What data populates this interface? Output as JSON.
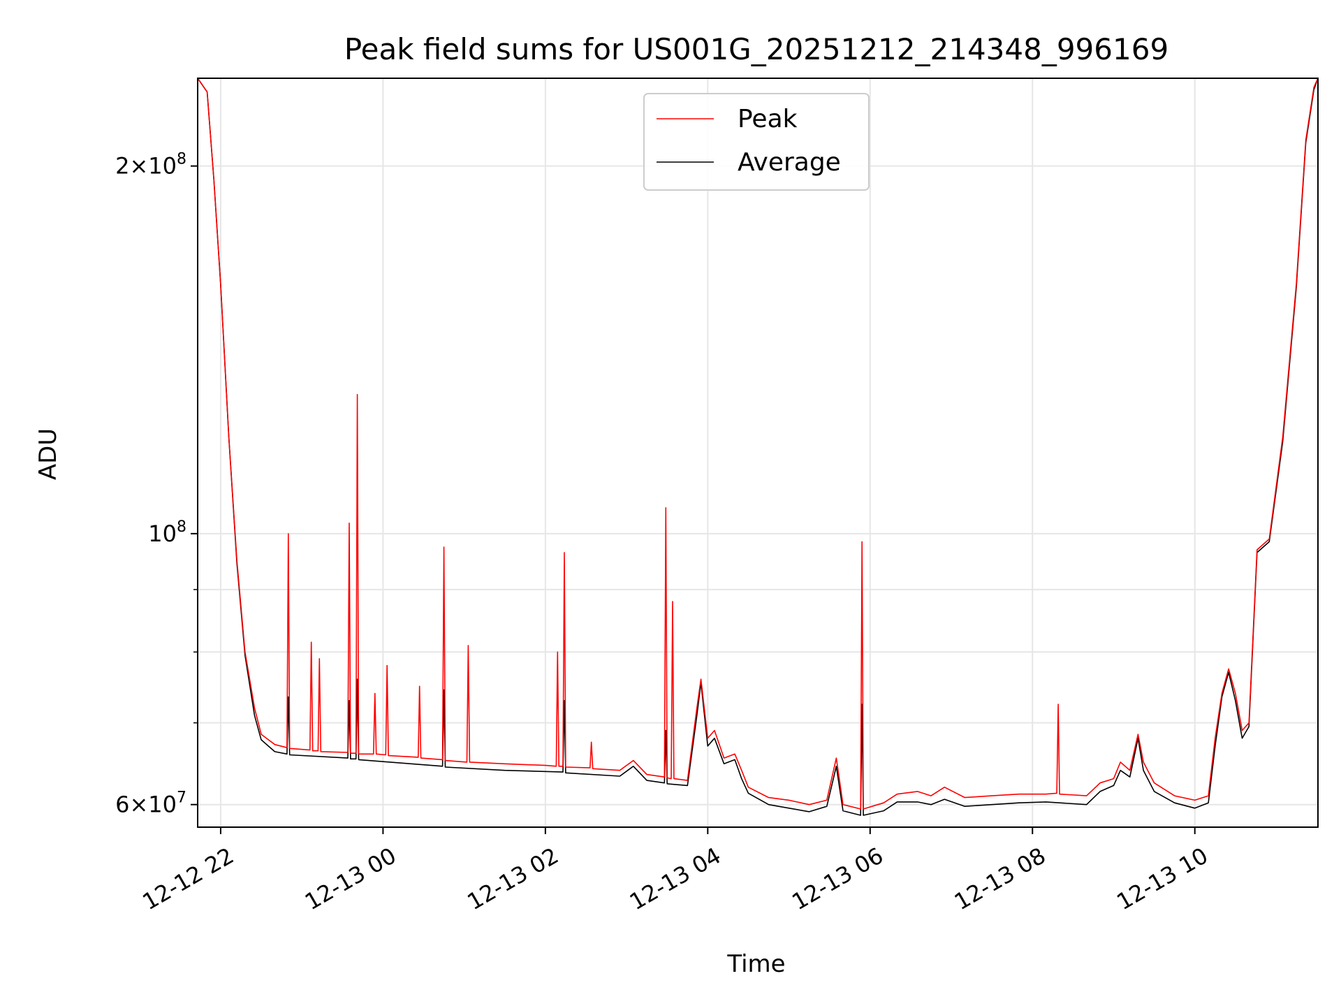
{
  "chart_data": {
    "type": "line",
    "title": "Peak field sums for US001G_20251212_214348_996169",
    "xlabel": "Time",
    "ylabel": "ADU",
    "yscale": "log",
    "ylim": [
      57500000,
      236000000
    ],
    "xlim": [
      "2025-12-12 21:43",
      "2025-12-13 11:31"
    ],
    "x_ticks": [
      {
        "label": "12-12 22",
        "t": "2025-12-12 22:00"
      },
      {
        "label": "12-13 00",
        "t": "2025-12-13 00:00"
      },
      {
        "label": "12-13 02",
        "t": "2025-12-13 02:00"
      },
      {
        "label": "12-13 04",
        "t": "2025-12-13 04:00"
      },
      {
        "label": "12-13 06",
        "t": "2025-12-13 06:00"
      },
      {
        "label": "12-13 08",
        "t": "2025-12-13 08:00"
      },
      {
        "label": "12-13 10",
        "t": "2025-12-13 10:00"
      }
    ],
    "y_ticks": [
      {
        "base": "6",
        "exp": "7",
        "value": 60000000
      },
      {
        "base": "",
        "exp": "8",
        "value": 100000000
      },
      {
        "base": "2",
        "exp": "8",
        "value": 200000000
      }
    ],
    "y_minor_gridlines": [
      70000000,
      80000000,
      90000000
    ],
    "grid": true,
    "legend_placement": "upper-center",
    "series": [
      {
        "name": "Peak",
        "color": "#ff0000",
        "points": [
          [
            "2025-12-12 21:43",
            236000000
          ],
          [
            "2025-12-12 21:50",
            230000000
          ],
          [
            "2025-12-12 21:55",
            195000000
          ],
          [
            "2025-12-12 22:00",
            160000000
          ],
          [
            "2025-12-12 22:06",
            120000000
          ],
          [
            "2025-12-12 22:12",
            95000000
          ],
          [
            "2025-12-12 22:18",
            80000000
          ],
          [
            "2025-12-12 22:25",
            72000000
          ],
          [
            "2025-12-12 22:30",
            68500000
          ],
          [
            "2025-12-12 22:40",
            67200000
          ],
          [
            "2025-12-12 22:49",
            66800000
          ],
          [
            "2025-12-12 22:50",
            100000000
          ],
          [
            "2025-12-12 22:51",
            66700000
          ],
          [
            "2025-12-12 23:06",
            66500000
          ],
          [
            "2025-12-12 23:07",
            81500000
          ],
          [
            "2025-12-12 23:08",
            66400000
          ],
          [
            "2025-12-12 23:12",
            66400000
          ],
          [
            "2025-12-12 23:13",
            79000000
          ],
          [
            "2025-12-12 23:14",
            66300000
          ],
          [
            "2025-12-12 23:34",
            66200000
          ],
          [
            "2025-12-12 23:35",
            102000000
          ],
          [
            "2025-12-12 23:36",
            66100000
          ],
          [
            "2025-12-12 23:40",
            66100000
          ],
          [
            "2025-12-12 23:41",
            130000000
          ],
          [
            "2025-12-12 23:42",
            66000000
          ],
          [
            "2025-12-12 23:53",
            66000000
          ],
          [
            "2025-12-12 23:54",
            74000000
          ],
          [
            "2025-12-12 23:55",
            66000000
          ],
          [
            "2025-12-13 00:02",
            65900000
          ],
          [
            "2025-12-13 00:03",
            78000000
          ],
          [
            "2025-12-13 00:04",
            65800000
          ],
          [
            "2025-12-13 00:26",
            65600000
          ],
          [
            "2025-12-13 00:27",
            75000000
          ],
          [
            "2025-12-13 00:28",
            65500000
          ],
          [
            "2025-12-13 00:44",
            65300000
          ],
          [
            "2025-12-13 00:45",
            97500000
          ],
          [
            "2025-12-13 00:46",
            65200000
          ],
          [
            "2025-12-13 01:02",
            65000000
          ],
          [
            "2025-12-13 01:03",
            81000000
          ],
          [
            "2025-12-13 01:04",
            65000000
          ],
          [
            "2025-12-13 01:30",
            64800000
          ],
          [
            "2025-12-13 02:00",
            64600000
          ],
          [
            "2025-12-13 02:08",
            64500000
          ],
          [
            "2025-12-13 02:09",
            80000000
          ],
          [
            "2025-12-13 02:10",
            64500000
          ],
          [
            "2025-12-13 02:13",
            64500000
          ],
          [
            "2025-12-13 02:14",
            96500000
          ],
          [
            "2025-12-13 02:15",
            64400000
          ],
          [
            "2025-12-13 02:33",
            64300000
          ],
          [
            "2025-12-13 02:34",
            67500000
          ],
          [
            "2025-12-13 02:35",
            64200000
          ],
          [
            "2025-12-13 02:55",
            64000000
          ],
          [
            "2025-12-13 03:05",
            65200000
          ],
          [
            "2025-12-13 03:15",
            63500000
          ],
          [
            "2025-12-13 03:28",
            63200000
          ],
          [
            "2025-12-13 03:29",
            105000000
          ],
          [
            "2025-12-13 03:30",
            63100000
          ],
          [
            "2025-12-13 03:33",
            63000000
          ],
          [
            "2025-12-13 03:34",
            88000000
          ],
          [
            "2025-12-13 03:35",
            63000000
          ],
          [
            "2025-12-13 03:45",
            62800000
          ],
          [
            "2025-12-13 03:52",
            72000000
          ],
          [
            "2025-12-13 03:55",
            76000000
          ],
          [
            "2025-12-13 04:00",
            68000000
          ],
          [
            "2025-12-13 04:05",
            69000000
          ],
          [
            "2025-12-13 04:12",
            65500000
          ],
          [
            "2025-12-13 04:20",
            66000000
          ],
          [
            "2025-12-13 04:25",
            64000000
          ],
          [
            "2025-12-13 04:30",
            62000000
          ],
          [
            "2025-12-13 04:45",
            60800000
          ],
          [
            "2025-12-13 05:00",
            60500000
          ],
          [
            "2025-12-13 05:15",
            60000000
          ],
          [
            "2025-12-13 05:28",
            60500000
          ],
          [
            "2025-12-13 05:35",
            65500000
          ],
          [
            "2025-12-13 05:40",
            60000000
          ],
          [
            "2025-12-13 05:53",
            59500000
          ],
          [
            "2025-12-13 05:54",
            98500000
          ],
          [
            "2025-12-13 05:55",
            59500000
          ],
          [
            "2025-12-13 06:10",
            60200000
          ],
          [
            "2025-12-13 06:20",
            61200000
          ],
          [
            "2025-12-13 06:35",
            61500000
          ],
          [
            "2025-12-13 06:45",
            61000000
          ],
          [
            "2025-12-13 06:55",
            62000000
          ],
          [
            "2025-12-13 07:10",
            60800000
          ],
          [
            "2025-12-13 07:30",
            61000000
          ],
          [
            "2025-12-13 07:50",
            61200000
          ],
          [
            "2025-12-13 08:10",
            61200000
          ],
          [
            "2025-12-13 08:18",
            61300000
          ],
          [
            "2025-12-13 08:19",
            72500000
          ],
          [
            "2025-12-13 08:20",
            61200000
          ],
          [
            "2025-12-13 08:40",
            61000000
          ],
          [
            "2025-12-13 08:50",
            62500000
          ],
          [
            "2025-12-13 09:00",
            63000000
          ],
          [
            "2025-12-13 09:05",
            65000000
          ],
          [
            "2025-12-13 09:12",
            64000000
          ],
          [
            "2025-12-13 09:18",
            68500000
          ],
          [
            "2025-12-13 09:22",
            65000000
          ],
          [
            "2025-12-13 09:30",
            62500000
          ],
          [
            "2025-12-13 09:45",
            61000000
          ],
          [
            "2025-12-13 10:00",
            60500000
          ],
          [
            "2025-12-13 10:10",
            61000000
          ],
          [
            "2025-12-13 10:15",
            68000000
          ],
          [
            "2025-12-13 10:20",
            74000000
          ],
          [
            "2025-12-13 10:25",
            77500000
          ],
          [
            "2025-12-13 10:30",
            74000000
          ],
          [
            "2025-12-13 10:35",
            69000000
          ],
          [
            "2025-12-13 10:40",
            70000000
          ],
          [
            "2025-12-13 10:46",
            97000000
          ],
          [
            "2025-12-13 10:55",
            99000000
          ],
          [
            "2025-12-13 11:05",
            120000000
          ],
          [
            "2025-12-13 11:15",
            160000000
          ],
          [
            "2025-12-13 11:22",
            210000000
          ],
          [
            "2025-12-13 11:28",
            232000000
          ],
          [
            "2025-12-13 11:31",
            236000000
          ]
        ]
      },
      {
        "name": "Average",
        "color": "#000000",
        "points": [
          [
            "2025-12-12 21:43",
            236000000
          ],
          [
            "2025-12-12 21:50",
            230000000
          ],
          [
            "2025-12-12 21:55",
            195000000
          ],
          [
            "2025-12-12 22:00",
            160000000
          ],
          [
            "2025-12-12 22:06",
            120000000
          ],
          [
            "2025-12-12 22:12",
            94500000
          ],
          [
            "2025-12-12 22:18",
            79500000
          ],
          [
            "2025-12-12 22:25",
            71000000
          ],
          [
            "2025-12-12 22:30",
            67800000
          ],
          [
            "2025-12-12 22:40",
            66300000
          ],
          [
            "2025-12-12 22:49",
            66000000
          ],
          [
            "2025-12-12 22:50",
            73500000
          ],
          [
            "2025-12-12 22:51",
            65900000
          ],
          [
            "2025-12-12 23:34",
            65500000
          ],
          [
            "2025-12-12 23:35",
            73000000
          ],
          [
            "2025-12-12 23:36",
            65400000
          ],
          [
            "2025-12-12 23:40",
            65400000
          ],
          [
            "2025-12-12 23:41",
            76000000
          ],
          [
            "2025-12-12 23:42",
            65300000
          ],
          [
            "2025-12-13 00:44",
            64500000
          ],
          [
            "2025-12-13 00:45",
            74500000
          ],
          [
            "2025-12-13 00:46",
            64400000
          ],
          [
            "2025-12-13 01:30",
            64000000
          ],
          [
            "2025-12-13 02:13",
            63800000
          ],
          [
            "2025-12-13 02:14",
            73000000
          ],
          [
            "2025-12-13 02:15",
            63700000
          ],
          [
            "2025-12-13 02:55",
            63300000
          ],
          [
            "2025-12-13 03:05",
            64500000
          ],
          [
            "2025-12-13 03:15",
            62800000
          ],
          [
            "2025-12-13 03:28",
            62500000
          ],
          [
            "2025-12-13 03:29",
            69000000
          ],
          [
            "2025-12-13 03:30",
            62400000
          ],
          [
            "2025-12-13 03:45",
            62200000
          ],
          [
            "2025-12-13 03:52",
            71000000
          ],
          [
            "2025-12-13 03:55",
            75500000
          ],
          [
            "2025-12-13 04:00",
            67000000
          ],
          [
            "2025-12-13 04:05",
            68000000
          ],
          [
            "2025-12-13 04:12",
            64800000
          ],
          [
            "2025-12-13 04:20",
            65300000
          ],
          [
            "2025-12-13 04:25",
            63000000
          ],
          [
            "2025-12-13 04:30",
            61300000
          ],
          [
            "2025-12-13 04:45",
            60000000
          ],
          [
            "2025-12-13 05:00",
            59600000
          ],
          [
            "2025-12-13 05:15",
            59200000
          ],
          [
            "2025-12-13 05:28",
            59800000
          ],
          [
            "2025-12-13 05:35",
            64500000
          ],
          [
            "2025-12-13 05:40",
            59300000
          ],
          [
            "2025-12-13 05:53",
            58800000
          ],
          [
            "2025-12-13 05:54",
            72500000
          ],
          [
            "2025-12-13 05:55",
            58800000
          ],
          [
            "2025-12-13 06:10",
            59300000
          ],
          [
            "2025-12-13 06:20",
            60300000
          ],
          [
            "2025-12-13 06:35",
            60300000
          ],
          [
            "2025-12-13 06:45",
            60000000
          ],
          [
            "2025-12-13 06:55",
            60600000
          ],
          [
            "2025-12-13 07:10",
            59800000
          ],
          [
            "2025-12-13 07:30",
            60000000
          ],
          [
            "2025-12-13 07:50",
            60200000
          ],
          [
            "2025-12-13 08:10",
            60300000
          ],
          [
            "2025-12-13 08:40",
            60000000
          ],
          [
            "2025-12-13 08:50",
            61500000
          ],
          [
            "2025-12-13 09:00",
            62200000
          ],
          [
            "2025-12-13 09:05",
            64000000
          ],
          [
            "2025-12-13 09:12",
            63200000
          ],
          [
            "2025-12-13 09:18",
            68000000
          ],
          [
            "2025-12-13 09:22",
            64000000
          ],
          [
            "2025-12-13 09:30",
            61500000
          ],
          [
            "2025-12-13 09:45",
            60200000
          ],
          [
            "2025-12-13 10:00",
            59600000
          ],
          [
            "2025-12-13 10:10",
            60200000
          ],
          [
            "2025-12-13 10:15",
            67000000
          ],
          [
            "2025-12-13 10:20",
            73500000
          ],
          [
            "2025-12-13 10:25",
            77000000
          ],
          [
            "2025-12-13 10:30",
            73000000
          ],
          [
            "2025-12-13 10:35",
            68000000
          ],
          [
            "2025-12-13 10:40",
            69500000
          ],
          [
            "2025-12-13 10:46",
            96500000
          ],
          [
            "2025-12-13 10:55",
            98500000
          ],
          [
            "2025-12-13 11:05",
            119000000
          ],
          [
            "2025-12-13 11:15",
            159000000
          ],
          [
            "2025-12-13 11:22",
            209000000
          ],
          [
            "2025-12-13 11:28",
            231000000
          ],
          [
            "2025-12-13 11:31",
            236000000
          ]
        ]
      }
    ]
  }
}
